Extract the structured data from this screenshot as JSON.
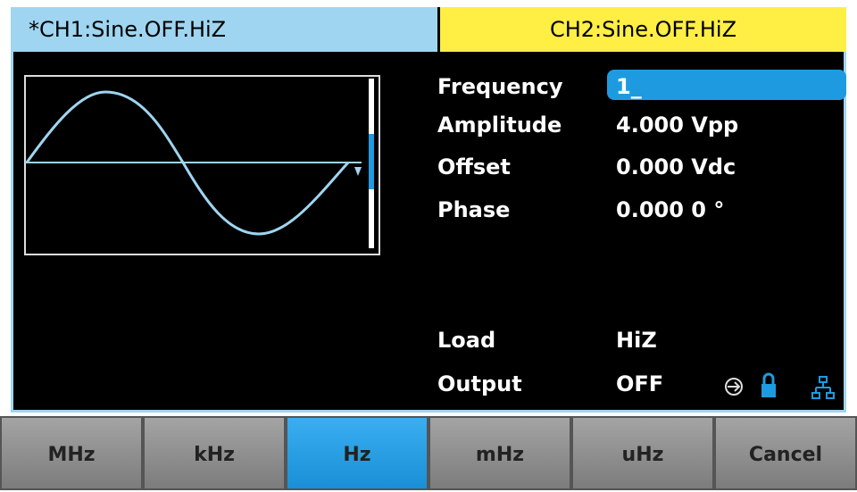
{
  "tabs": [
    "*CH1:Sine.OFF.HiZ",
    "CH2:Sine.OFF.HiZ"
  ],
  "parameters": [
    {
      "label": "Frequency",
      "value": "1_"
    },
    {
      "label": "Amplitude",
      "value": "4.000 Vpp"
    },
    {
      "label": "Offset",
      "value": "0.000 Vdc"
    },
    {
      "label": "Phase",
      "value": "0.000 0 °"
    },
    {
      "label": "Load",
      "value": "HiZ"
    },
    {
      "label": "Output",
      "value": "OFF"
    }
  ],
  "buttons": [
    "MHz",
    "kHz",
    "Hz",
    "mHz",
    "uHz",
    "Cancel"
  ]
}
